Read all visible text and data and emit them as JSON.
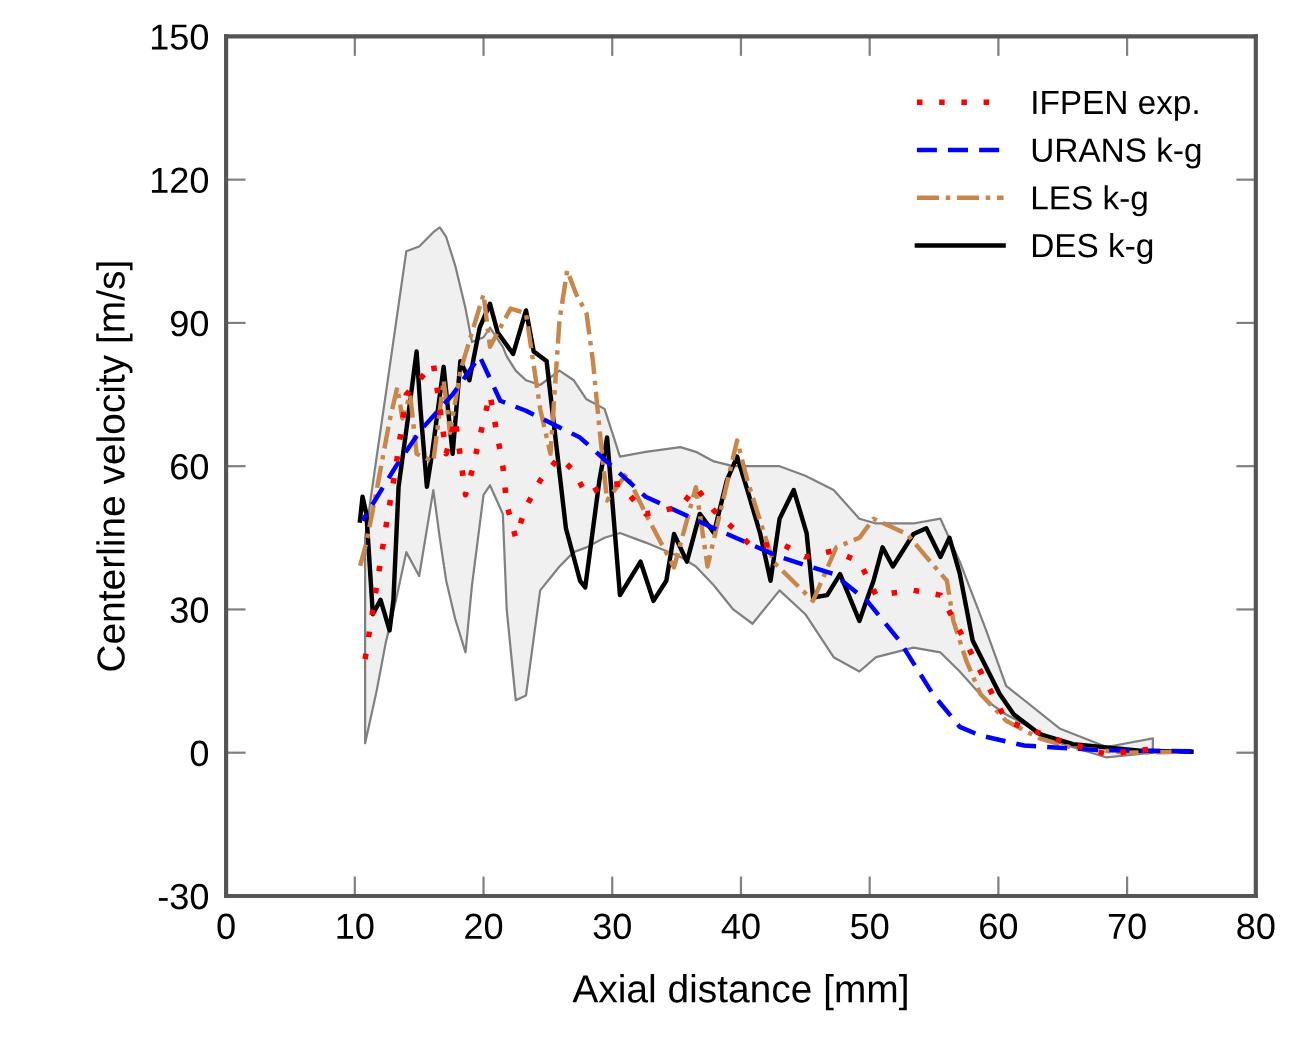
{
  "chart_data": {
    "type": "line",
    "xlabel": "Axial distance [mm]",
    "ylabel": "Centerline velocity [m/s]",
    "xlim": [
      0,
      80
    ],
    "xticks": [
      0,
      10,
      20,
      30,
      40,
      50,
      60,
      70,
      80
    ],
    "ylim": [
      -30,
      150
    ],
    "yticks": [
      -30,
      0,
      30,
      60,
      90,
      120,
      150
    ],
    "grid": false,
    "legend": "top right",
    "marker": "none",
    "series": [
      {
        "name": "IFPEN exp.",
        "color": "#ff0000",
        "line_style": "dotted",
        "x": [
          10.8,
          11.7,
          12.4,
          13.2,
          14,
          15,
          16.1,
          16.6,
          17.1,
          17.8,
          18.6,
          19.1,
          20,
          20.5,
          21.5,
          21.8,
          22.5,
          23.3,
          24.4,
          25.9,
          27,
          28,
          29.4,
          30.6,
          32.6,
          35.3,
          36.5,
          37.9,
          39.4,
          40.9,
          43,
          45,
          47.2,
          49.2,
          50.5,
          53.4,
          55.5,
          57,
          59,
          60.6,
          64.8,
          68.4,
          72
        ],
        "values": [
          19.6,
          35,
          47,
          60,
          75,
          78,
          81.5,
          72.4,
          62.6,
          70,
          54,
          59,
          69.5,
          75,
          60,
          52,
          45,
          51.5,
          57,
          62,
          59,
          54,
          56,
          56.3,
          50,
          51.5,
          55.6,
          50.7,
          47,
          43,
          44,
          41,
          42.3,
          40,
          33,
          34,
          33,
          25.5,
          15,
          6.7,
          2.5,
          -0.3,
          0.8
        ],
        "lower": [
          2,
          13,
          23,
          32,
          42,
          37,
          55,
          45,
          36,
          28,
          21,
          35,
          54,
          56,
          50,
          30,
          11,
          12,
          34,
          39,
          42,
          43,
          45,
          46,
          44,
          41,
          39,
          35,
          30,
          27,
          34,
          29,
          20,
          17,
          20,
          22,
          21,
          17,
          11,
          8,
          2,
          -1,
          0
        ],
        "upper": [
          45,
          62,
          75,
          90,
          105,
          106,
          109,
          110,
          108,
          102,
          93,
          86,
          87,
          89,
          85,
          83,
          80,
          78,
          77,
          80,
          78,
          74,
          72,
          62,
          63,
          64,
          63,
          61,
          60,
          60,
          60,
          58,
          55,
          49,
          48,
          48,
          49,
          40,
          26,
          14,
          5,
          1.2,
          3
        ]
      },
      {
        "name": "URANS k-g",
        "color": "#0000ff",
        "line_style": "dashed",
        "x": [
          10.6,
          13.2,
          15.1,
          17.6,
          19.7,
          21.3,
          23.3,
          27.5,
          32.6,
          37.9,
          43,
          47.2,
          49.8,
          52.3,
          54.9,
          57,
          58.6,
          62,
          68,
          75
        ],
        "values": [
          48.6,
          60,
          67.5,
          75,
          83,
          73.7,
          71.6,
          66,
          53.6,
          47,
          41,
          37.4,
          31.8,
          23.5,
          12.3,
          5.4,
          3.6,
          1.5,
          0.5,
          0.3
        ]
      },
      {
        "name": "LES k-g",
        "color": "#c8864a",
        "line_style": "dashdot",
        "x": [
          10.4,
          10.9,
          11.7,
          12.7,
          13.3,
          13.7,
          14.3,
          14.8,
          16.1,
          16.9,
          17.4,
          18.2,
          20,
          20.5,
          22.1,
          23.3,
          24.4,
          25.2,
          25.9,
          26.5,
          27.2,
          28,
          28.5,
          29,
          29.6,
          31.1,
          32.6,
          34.8,
          36.5,
          37.4,
          39.7,
          40.5,
          42.5,
          45.6,
          47.4,
          49.2,
          50.3,
          52.9,
          54.4,
          56,
          56.5,
          57.5,
          58.6,
          60.6,
          63.2,
          65.8,
          70,
          74
        ],
        "values": [
          39,
          44,
          55,
          69.5,
          76.5,
          70,
          75,
          62.6,
          61,
          78,
          67,
          80,
          96,
          85,
          93,
          92,
          72,
          62.6,
          90.5,
          101,
          96,
          92,
          82,
          68,
          52.8,
          58.4,
          50,
          38.8,
          55.6,
          39,
          65.4,
          57,
          40,
          31.8,
          43,
          45,
          49,
          45.8,
          41,
          36,
          27.6,
          19.3,
          12.3,
          6.7,
          3,
          1,
          0,
          0.2
        ]
      },
      {
        "name": "DES k-g",
        "color": "#000000",
        "line_style": "solid",
        "x": [
          10.4,
          10.6,
          10.9,
          11.4,
          12,
          12.7,
          13,
          13.4,
          14.1,
          14.8,
          15.1,
          15.6,
          16,
          16.9,
          17.6,
          18.2,
          18.9,
          19.7,
          20.5,
          21.1,
          22.3,
          23.3,
          23.9,
          24.9,
          26.4,
          27.5,
          27.9,
          29,
          29.6,
          30.6,
          32.2,
          33.2,
          34.2,
          34.8,
          35.8,
          36.8,
          37.9,
          38.9,
          39.7,
          40.5,
          41.5,
          42.3,
          43,
          44.1,
          45.1,
          45.6,
          46.7,
          47.7,
          49.2,
          50.3,
          51,
          51.8,
          53.4,
          54.4,
          55.5,
          56.2,
          57,
          58,
          60.1,
          61.2,
          63.2,
          65.8,
          71,
          75
        ],
        "values": [
          48.6,
          53.6,
          50,
          29,
          32,
          25.6,
          32,
          55.7,
          69.5,
          84,
          72,
          55.7,
          62.6,
          80.8,
          62.6,
          82,
          78,
          89,
          94,
          88,
          83.5,
          92.6,
          84,
          82,
          47,
          36,
          34.6,
          57,
          66,
          33,
          40,
          31.8,
          36,
          45.8,
          40,
          50,
          46,
          57,
          62,
          55,
          45.8,
          36,
          49,
          55,
          46,
          32.5,
          33,
          37.4,
          27.6,
          36,
          43,
          39,
          45.8,
          47,
          41,
          45,
          37.5,
          23.5,
          12.3,
          8,
          3.9,
          1.8,
          0.4,
          0.2
        ]
      }
    ]
  }
}
